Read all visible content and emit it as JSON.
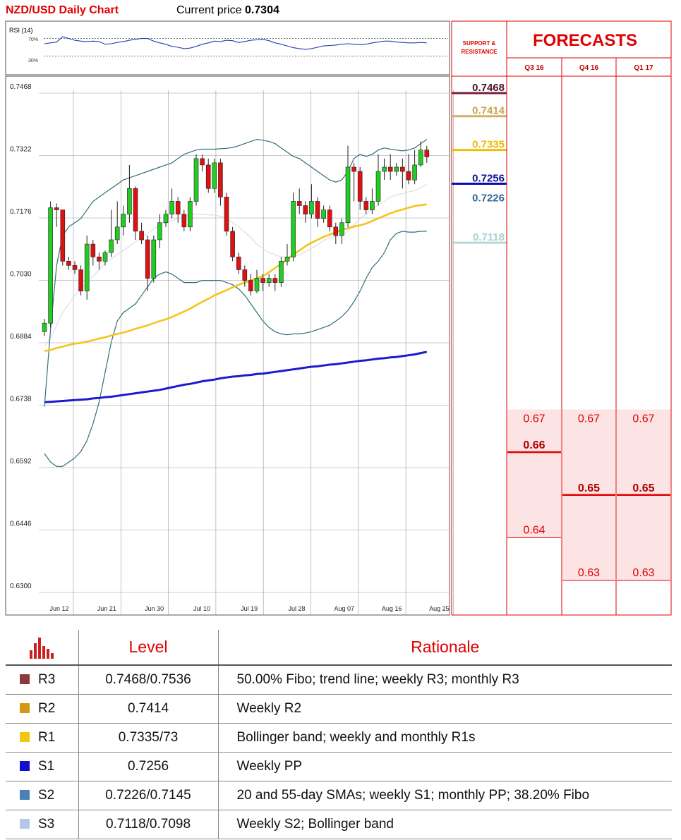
{
  "header": {
    "title": "NZD/USD Daily Chart",
    "price_label": "Current price",
    "price_value": "0.7304"
  },
  "rsi": {
    "label": "RSI (14)",
    "level_high": "70%",
    "level_low": "30%"
  },
  "chart_data": {
    "type": "candlestick",
    "y_ticks": [
      "0.7468",
      "0.7322",
      "0.7176",
      "0.7030",
      "0.6884",
      "0.6738",
      "0.6592",
      "0.6446",
      "0.6300"
    ],
    "ylim": [
      0.63,
      0.7468
    ],
    "x_ticks": [
      "Jun 12",
      "Jun 21",
      "Jun 30",
      "Jul 10",
      "Jul 19",
      "Jul 28",
      "Aug 07",
      "Aug 16",
      "Aug 25"
    ],
    "grid": true,
    "candles": [
      [
        0.6895,
        0.6915,
        0.6885,
        0.6925
      ],
      [
        0.6915,
        0.7185,
        0.6905,
        0.72
      ],
      [
        0.7185,
        0.718,
        0.714,
        0.7195
      ],
      [
        0.718,
        0.706,
        0.705,
        0.718
      ],
      [
        0.706,
        0.705,
        0.704,
        0.707
      ],
      [
        0.705,
        0.704,
        0.703,
        0.706
      ],
      [
        0.704,
        0.699,
        0.698,
        0.705
      ],
      [
        0.699,
        0.71,
        0.697,
        0.712
      ],
      [
        0.71,
        0.707,
        0.705,
        0.711
      ],
      [
        0.707,
        0.706,
        0.704,
        0.708
      ],
      [
        0.706,
        0.708,
        0.705,
        0.7085
      ],
      [
        0.708,
        0.711,
        0.707,
        0.718
      ],
      [
        0.711,
        0.714,
        0.71,
        0.72
      ],
      [
        0.714,
        0.717,
        0.712,
        0.719
      ],
      [
        0.717,
        0.723,
        0.715,
        0.7285
      ],
      [
        0.723,
        0.713,
        0.711,
        0.7235
      ],
      [
        0.713,
        0.711,
        0.71,
        0.715
      ],
      [
        0.711,
        0.702,
        0.699,
        0.712
      ],
      [
        0.702,
        0.711,
        0.701,
        0.712
      ],
      [
        0.711,
        0.715,
        0.709,
        0.717
      ],
      [
        0.715,
        0.717,
        0.714,
        0.718
      ],
      [
        0.717,
        0.72,
        0.716,
        0.723
      ],
      [
        0.72,
        0.717,
        0.715,
        0.721
      ],
      [
        0.717,
        0.714,
        0.713,
        0.718
      ],
      [
        0.714,
        0.72,
        0.713,
        0.721
      ],
      [
        0.72,
        0.73,
        0.719,
        0.731
      ],
      [
        0.73,
        0.7285,
        0.727,
        0.731
      ],
      [
        0.7285,
        0.723,
        0.722,
        0.73
      ],
      [
        0.723,
        0.729,
        0.722,
        0.73
      ],
      [
        0.729,
        0.721,
        0.719,
        0.73
      ],
      [
        0.721,
        0.713,
        0.712,
        0.722
      ],
      [
        0.713,
        0.707,
        0.706,
        0.714
      ],
      [
        0.707,
        0.704,
        0.703,
        0.708
      ],
      [
        0.704,
        0.7015,
        0.7,
        0.705
      ],
      [
        0.7015,
        0.699,
        0.698,
        0.703
      ],
      [
        0.699,
        0.702,
        0.6985,
        0.704
      ],
      [
        0.702,
        0.701,
        0.699,
        0.703
      ],
      [
        0.701,
        0.702,
        0.7,
        0.703
      ],
      [
        0.702,
        0.701,
        0.699,
        0.703
      ],
      [
        0.701,
        0.706,
        0.7,
        0.707
      ],
      [
        0.706,
        0.707,
        0.705,
        0.71
      ],
      [
        0.707,
        0.72,
        0.706,
        0.722
      ],
      [
        0.72,
        0.719,
        0.717,
        0.723
      ],
      [
        0.719,
        0.717,
        0.715,
        0.72
      ],
      [
        0.717,
        0.72,
        0.716,
        0.724
      ],
      [
        0.72,
        0.716,
        0.714,
        0.721
      ],
      [
        0.716,
        0.718,
        0.715,
        0.719
      ],
      [
        0.718,
        0.714,
        0.713,
        0.719
      ],
      [
        0.714,
        0.712,
        0.71,
        0.715
      ],
      [
        0.712,
        0.715,
        0.71,
        0.716
      ],
      [
        0.715,
        0.728,
        0.714,
        0.733
      ],
      [
        0.728,
        0.727,
        0.72,
        0.729
      ],
      [
        0.727,
        0.72,
        0.718,
        0.728
      ],
      [
        0.72,
        0.718,
        0.717,
        0.721
      ],
      [
        0.718,
        0.72,
        0.717,
        0.723
      ],
      [
        0.72,
        0.727,
        0.719,
        0.731
      ],
      [
        0.727,
        0.728,
        0.725,
        0.73
      ],
      [
        0.728,
        0.727,
        0.725,
        0.731
      ],
      [
        0.727,
        0.728,
        0.726,
        0.729
      ],
      [
        0.728,
        0.727,
        0.723,
        0.73
      ],
      [
        0.727,
        0.725,
        0.724,
        0.731
      ],
      [
        0.725,
        0.7285,
        0.724,
        0.732
      ],
      [
        0.7285,
        0.732,
        0.728,
        0.734
      ],
      [
        0.732,
        0.7304,
        0.729,
        0.733
      ]
    ],
    "sma55": [
      0.685,
      0.6852,
      0.6857,
      0.686,
      0.6864,
      0.6867,
      0.6869,
      0.6872,
      0.6875,
      0.6879,
      0.6882,
      0.6886,
      0.689,
      0.6893,
      0.6897,
      0.6902,
      0.6906,
      0.691,
      0.6915,
      0.692,
      0.6924,
      0.6929,
      0.6936,
      0.6942,
      0.6949,
      0.6957,
      0.6965,
      0.6972,
      0.698,
      0.6986,
      0.6992,
      0.6999,
      0.7005,
      0.701,
      0.7015,
      0.702,
      0.7025,
      0.7034,
      0.7044,
      0.7054,
      0.7064,
      0.7075,
      0.7085,
      0.7095,
      0.7103,
      0.711,
      0.7117,
      0.7122,
      0.7128,
      0.7133,
      0.7137,
      0.7141,
      0.7144,
      0.7148,
      0.7154,
      0.716,
      0.7166,
      0.7172,
      0.7177,
      0.7181,
      0.7185,
      0.7189,
      0.7191,
      0.7193
    ],
    "sma200": [
      0.673,
      0.6731,
      0.6732,
      0.6733,
      0.6734,
      0.6735,
      0.6736,
      0.6737,
      0.6739,
      0.674,
      0.6742,
      0.6743,
      0.6745,
      0.6747,
      0.6749,
      0.6751,
      0.6753,
      0.6755,
      0.6757,
      0.6759,
      0.6762,
      0.6765,
      0.6768,
      0.6771,
      0.6773,
      0.6776,
      0.6779,
      0.6781,
      0.6783,
      0.6786,
      0.6788,
      0.679,
      0.6791,
      0.6793,
      0.6794,
      0.6796,
      0.6797,
      0.6799,
      0.6801,
      0.6803,
      0.6805,
      0.6807,
      0.6809,
      0.6811,
      0.6813,
      0.6814,
      0.6816,
      0.6818,
      0.6819,
      0.6821,
      0.6823,
      0.6825,
      0.6827,
      0.6828,
      0.683,
      0.6832,
      0.6833,
      0.6835,
      0.6836,
      0.6838,
      0.684,
      0.6842,
      0.6845,
      0.6848
    ],
    "bb_upper": [
      0.672,
      0.69,
      0.705,
      0.712,
      0.714,
      0.715,
      0.716,
      0.718,
      0.72,
      0.721,
      0.722,
      0.723,
      0.724,
      0.725,
      0.7255,
      0.726,
      0.7265,
      0.727,
      0.7275,
      0.728,
      0.7285,
      0.729,
      0.73,
      0.731,
      0.7315,
      0.732,
      0.7322,
      0.7322,
      0.7322,
      0.7323,
      0.7324,
      0.7326,
      0.733,
      0.7335,
      0.734,
      0.7345,
      0.7343,
      0.734,
      0.7335,
      0.7325,
      0.7315,
      0.7305,
      0.73,
      0.729,
      0.728,
      0.727,
      0.726,
      0.725,
      0.7245,
      0.725,
      0.727,
      0.73,
      0.731,
      0.7305,
      0.731,
      0.732,
      0.7325,
      0.7322,
      0.732,
      0.7318,
      0.732,
      0.7325,
      0.7335,
      0.7345
    ],
    "bb_lower": [
      0.661,
      0.659,
      0.658,
      0.658,
      0.659,
      0.66,
      0.6615,
      0.664,
      0.668,
      0.673,
      0.68,
      0.687,
      0.692,
      0.694,
      0.695,
      0.696,
      0.698,
      0.7,
      0.702,
      0.703,
      0.7035,
      0.703,
      0.702,
      0.701,
      0.701,
      0.701,
      0.7015,
      0.7015,
      0.7015,
      0.7015,
      0.701,
      0.7005,
      0.6995,
      0.698,
      0.696,
      0.694,
      0.692,
      0.6905,
      0.6895,
      0.689,
      0.6888,
      0.689,
      0.689,
      0.6892,
      0.6895,
      0.69,
      0.6905,
      0.691,
      0.692,
      0.693,
      0.6945,
      0.6965,
      0.699,
      0.702,
      0.7045,
      0.706,
      0.708,
      0.711,
      0.7125,
      0.713,
      0.7128,
      0.7128,
      0.713,
      0.713
    ],
    "bb_middle": [
      0.686,
      0.688,
      0.691,
      0.694,
      0.696,
      0.698,
      0.6995,
      0.701,
      0.7025,
      0.704,
      0.7055,
      0.7065,
      0.7075,
      0.7085,
      0.7095,
      0.7105,
      0.7115,
      0.7125,
      0.7135,
      0.7145,
      0.715,
      0.7155,
      0.716,
      0.7165,
      0.7168,
      0.717,
      0.717,
      0.7168,
      0.7168,
      0.7165,
      0.716,
      0.715,
      0.714,
      0.7128,
      0.7115,
      0.71,
      0.709,
      0.708,
      0.7075,
      0.707,
      0.7068,
      0.707,
      0.7075,
      0.7082,
      0.709,
      0.7098,
      0.7108,
      0.7115,
      0.7118,
      0.712,
      0.713,
      0.7145,
      0.716,
      0.717,
      0.718,
      0.7192,
      0.72,
      0.721,
      0.7215,
      0.7218,
      0.7222,
      0.7225,
      0.7232,
      0.724
    ],
    "rsi_values": [
      58,
      60,
      62,
      74,
      70,
      66,
      64,
      63,
      64,
      63,
      57,
      58,
      61,
      63,
      66,
      68,
      70,
      70,
      64,
      60,
      57,
      52,
      50,
      47,
      48,
      52,
      57,
      60,
      64,
      63,
      66,
      65,
      61,
      63,
      66,
      67,
      68,
      65,
      60,
      57,
      53,
      49,
      47,
      45,
      47,
      50,
      53,
      54,
      55,
      57,
      58,
      57,
      56,
      57,
      60,
      62,
      64,
      64,
      62,
      61,
      60,
      60,
      61,
      60
    ]
  },
  "support_resistance": {
    "title_line1": "SUPPORT &",
    "title_line2": "RESISTANCE",
    "levels": [
      {
        "label": "0.7468",
        "value": 0.7468,
        "color": "#7b1e3a",
        "text_color": "#4a0f25",
        "line": true
      },
      {
        "label": "0.7414",
        "value": 0.7414,
        "color": "#d4b067",
        "text_color": "#c8a050",
        "line": true
      },
      {
        "label": "0.7335",
        "value": 0.7335,
        "color": "#f0c000",
        "text_color": "#f0b800",
        "line": true
      },
      {
        "label": "0.7256",
        "value": 0.7256,
        "color": "#0b0bb5",
        "text_color": "#0b0b9a",
        "line": true
      },
      {
        "label": "0.7226",
        "value": 0.7226,
        "color": "#2d6a9a",
        "text_color": "#2d6a9a",
        "line": true
      },
      {
        "label": "0.7118",
        "value": 0.7118,
        "color": "#b8d6d6",
        "text_color": "#a9cfcf",
        "line": true
      }
    ]
  },
  "forecasts": {
    "title": "FORECASTS",
    "columns": [
      {
        "label": "Q3 16",
        "low": 0.64,
        "high": 0.67,
        "mid": 0.66,
        "top_label": "0.67",
        "mid_label": "0.66",
        "low_label": "0.64"
      },
      {
        "label": "Q4 16",
        "low": 0.63,
        "high": 0.67,
        "mid": 0.65,
        "top_label": "0.67",
        "mid_label": "0.65",
        "low_label": "0.63"
      },
      {
        "label": "Q1 17",
        "low": 0.63,
        "high": 0.67,
        "mid": 0.65,
        "top_label": "0.67",
        "mid_label": "0.65",
        "low_label": "0.63"
      }
    ]
  },
  "levels_table": {
    "header_level": "Level",
    "header_rationale": "Rationale",
    "rows": [
      {
        "name": "R3",
        "color": "#8b3a3a",
        "level": "0.7468/0.7536",
        "rationale": "50.00% Fibo; trend line; weekly R3; monthly R3"
      },
      {
        "name": "R2",
        "color": "#d29a12",
        "level": "0.7414",
        "rationale": "Weekly R2"
      },
      {
        "name": "R1",
        "color": "#f2c60a",
        "level": "0.7335/73",
        "rationale": "Bollinger band; weekly and monthly R1s"
      },
      {
        "name": "S1",
        "color": "#1010d0",
        "level": "0.7256",
        "rationale": "Weekly PP"
      },
      {
        "name": "S2",
        "color": "#4a7fb8",
        "level": "0.7226/0.7145",
        "rationale": "20 and 55-day SMAs; weekly S1; monthly PP; 38.20% Fibo"
      },
      {
        "name": "S3",
        "color": "#b4c8e6",
        "level": "0.7118/0.7098",
        "rationale": "Weekly S2; Bollinger band"
      }
    ]
  },
  "colors": {
    "bull": "#22cc22",
    "bear": "#dd1111",
    "sma55": "#f3c41a",
    "sma200": "#1a1ad0",
    "bollinger": "#2f6f78",
    "accent": "#e00000",
    "forecast_fill": "#fde4e4"
  }
}
